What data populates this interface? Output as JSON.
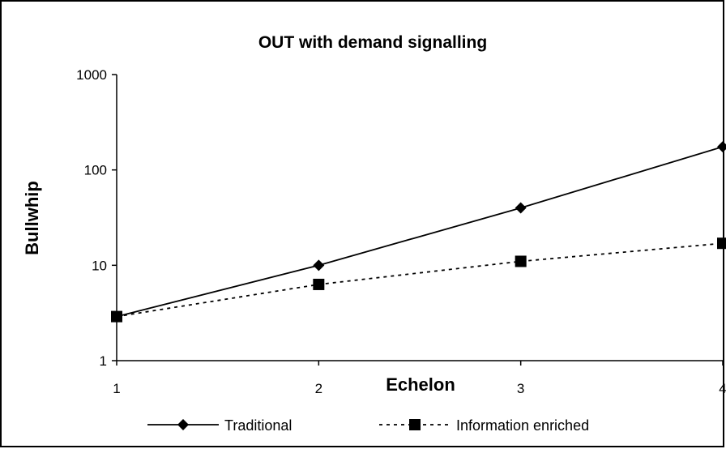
{
  "chart_data": {
    "type": "line",
    "title": "OUT with demand signalling",
    "xlabel": "Echelon",
    "ylabel": "Bullwhip",
    "x": [
      1,
      2,
      3,
      4
    ],
    "x_tick_labels": [
      "1",
      "2",
      "3",
      "4"
    ],
    "y_scale": "log",
    "ylim": [
      1,
      1000
    ],
    "y_tick_labels": [
      "1",
      "10",
      "100",
      "1000"
    ],
    "y_ticks": [
      1,
      10,
      100,
      1000
    ],
    "grid": false,
    "legend_position": "bottom",
    "series": [
      {
        "name": "Traditional",
        "values": [
          2.9,
          10,
          40,
          175
        ],
        "line_style": "solid",
        "marker": "diamond",
        "color": "#000000"
      },
      {
        "name": "Information enriched",
        "values": [
          2.9,
          6.3,
          11,
          17
        ],
        "line_style": "dotted",
        "marker": "square",
        "color": "#000000"
      }
    ]
  }
}
